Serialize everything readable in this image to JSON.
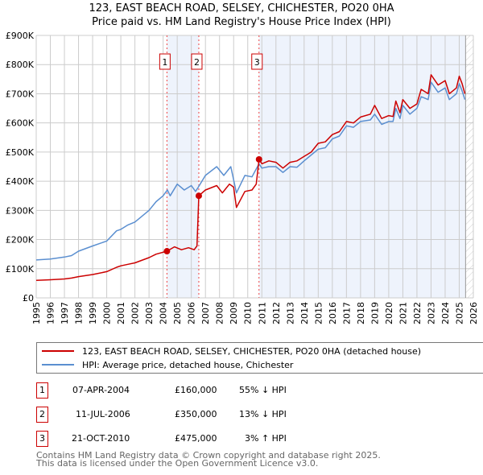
{
  "title_line1": "123, EAST BEACH ROAD, SELSEY, CHICHESTER, PO20 0HA",
  "title_line2": "Price paid vs. HM Land Registry's House Price Index (HPI)",
  "colors": {
    "property": "#cc0000",
    "hpi": "#5b8fd0",
    "shade": "#eef3fc",
    "grid": "#cccccc"
  },
  "chart_data": {
    "type": "line",
    "ylim": [
      0,
      900000
    ],
    "xlim": [
      1995,
      2026
    ],
    "yticks": [
      {
        "v": 0,
        "label": "£0"
      },
      {
        "v": 100000,
        "label": "£100K"
      },
      {
        "v": 200000,
        "label": "£200K"
      },
      {
        "v": 300000,
        "label": "£300K"
      },
      {
        "v": 400000,
        "label": "£400K"
      },
      {
        "v": 500000,
        "label": "£500K"
      },
      {
        "v": 600000,
        "label": "£600K"
      },
      {
        "v": 700000,
        "label": "£700K"
      },
      {
        "v": 800000,
        "label": "£800K"
      },
      {
        "v": 900000,
        "label": "£900K"
      }
    ],
    "xticks": [
      "1995",
      "1996",
      "1997",
      "1998",
      "1999",
      "2000",
      "2001",
      "2002",
      "2003",
      "2004",
      "2005",
      "2006",
      "2007",
      "2008",
      "2009",
      "2010",
      "2011",
      "2012",
      "2013",
      "2014",
      "2015",
      "2016",
      "2017",
      "2018",
      "2019",
      "2020",
      "2021",
      "2022",
      "2023",
      "2024",
      "2025",
      "2026"
    ],
    "series": [
      {
        "name": "123, EAST BEACH ROAD, SELSEY, CHICHESTER, PO20 0HA (detached house)",
        "key": "property",
        "x": [
          1995,
          1996,
          1997,
          1997.5,
          1998,
          1999,
          2000,
          2000.7,
          2001,
          2001.5,
          2002,
          2003,
          2003.5,
          2004.27,
          2004.8,
          2005.3,
          2005.8,
          2006.2,
          2006.4,
          2006.53,
          2007,
          2007.8,
          2008.2,
          2008.7,
          2009,
          2009.2,
          2009.8,
          2010.3,
          2010.6,
          2010.8,
          2011,
          2011.5,
          2012,
          2012.5,
          2013,
          2013.5,
          2014,
          2014.5,
          2015,
          2015.5,
          2016,
          2016.5,
          2017,
          2017.5,
          2018,
          2018.7,
          2019,
          2019.5,
          2020,
          2020.3,
          2020.5,
          2020.8,
          2021,
          2021.5,
          2022,
          2022.3,
          2022.8,
          2023,
          2023.5,
          2024,
          2024.3,
          2024.8,
          2025,
          2025.2,
          2025.4
        ],
        "y": [
          60000,
          62000,
          65000,
          68000,
          73000,
          80000,
          90000,
          105000,
          110000,
          115000,
          120000,
          138000,
          150000,
          160000,
          175000,
          165000,
          172000,
          165000,
          178000,
          350000,
          370000,
          385000,
          360000,
          390000,
          380000,
          310000,
          365000,
          370000,
          390000,
          475000,
          460000,
          470000,
          465000,
          445000,
          465000,
          470000,
          485000,
          500000,
          530000,
          535000,
          560000,
          570000,
          605000,
          600000,
          620000,
          630000,
          660000,
          615000,
          625000,
          622000,
          675000,
          635000,
          680000,
          650000,
          665000,
          715000,
          700000,
          765000,
          730000,
          745000,
          700000,
          720000,
          760000,
          735000,
          700000
        ]
      },
      {
        "name": "HPI: Average price, detached house, Chichester",
        "key": "hpi",
        "x": [
          1995,
          1996,
          1997,
          1997.5,
          1998,
          1999,
          2000,
          2000.7,
          2001,
          2001.5,
          2002,
          2003,
          2003.5,
          2004,
          2004.3,
          2004.5,
          2005,
          2005.5,
          2006,
          2006.3,
          2006.5,
          2007,
          2007.8,
          2008.3,
          2008.8,
          2009.2,
          2009.8,
          2010.3,
          2010.8,
          2011,
          2011.5,
          2012,
          2012.5,
          2013,
          2013.5,
          2014,
          2014.5,
          2015,
          2015.5,
          2016,
          2016.5,
          2017,
          2017.5,
          2018,
          2018.7,
          2019,
          2019.5,
          2020,
          2020.3,
          2020.5,
          2020.8,
          2021,
          2021.5,
          2022,
          2022.3,
          2022.8,
          2023,
          2023.5,
          2024,
          2024.3,
          2024.8,
          2025,
          2025.2,
          2025.4
        ],
        "y": [
          130000,
          133000,
          140000,
          145000,
          160000,
          178000,
          195000,
          230000,
          235000,
          250000,
          260000,
          300000,
          330000,
          350000,
          370000,
          350000,
          390000,
          370000,
          385000,
          365000,
          380000,
          420000,
          450000,
          420000,
          450000,
          360000,
          420000,
          415000,
          460000,
          445000,
          450000,
          450000,
          430000,
          450000,
          448000,
          470000,
          490000,
          510000,
          515000,
          545000,
          555000,
          590000,
          585000,
          605000,
          610000,
          630000,
          595000,
          605000,
          605000,
          650000,
          615000,
          660000,
          630000,
          650000,
          690000,
          680000,
          740000,
          705000,
          720000,
          680000,
          700000,
          735000,
          710000,
          680000
        ]
      }
    ],
    "sales": [
      {
        "id": "1",
        "x": 2004.27,
        "y": 160000
      },
      {
        "id": "2",
        "x": 2006.53,
        "y": 350000
      },
      {
        "id": "3",
        "x": 2010.8,
        "y": 475000
      }
    ],
    "data_end": 2025.45
  },
  "legend": {
    "property": "123, EAST BEACH ROAD, SELSEY, CHICHESTER, PO20 0HA (detached house)",
    "hpi": "HPI: Average price, detached house, Chichester"
  },
  "transactions": [
    {
      "id": "1",
      "date": "07-APR-2004",
      "price": "£160,000",
      "hpi": "55% ↓ HPI"
    },
    {
      "id": "2",
      "date": "11-JUL-2006",
      "price": "£350,000",
      "hpi": "13% ↓ HPI"
    },
    {
      "id": "3",
      "date": "21-OCT-2010",
      "price": "£475,000",
      "hpi": "3% ↑ HPI"
    }
  ],
  "footer": {
    "line1": "Contains HM Land Registry data © Crown copyright and database right 2025.",
    "line2": "This data is licensed under the Open Government Licence v3.0."
  }
}
